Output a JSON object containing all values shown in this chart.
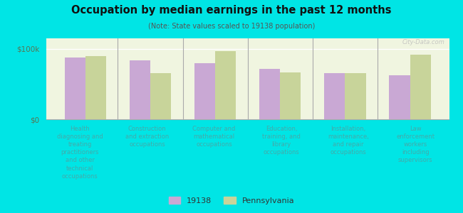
{
  "title": "Occupation by median earnings in the past 12 months",
  "subtitle": "(Note: State values scaled to 19138 population)",
  "background_outer": "#00e5e5",
  "background_inner_top": "#e8f0d8",
  "background_inner_bottom": "#f0f5e0",
  "bar_color_19138": "#c9a8d4",
  "bar_color_pa": "#c8d49a",
  "categories": [
    "Health\ndiagnosing and\ntreating\npractitioners\nand other\ntechnical\noccupations",
    "Construction\nand extraction\noccupations",
    "Computer and\nmathematical\noccupations",
    "Education,\ntraining, and\nlibrary\noccupations",
    "Installation,\nmaintenance,\nand repair\noccupations",
    "Law\nenforcement\nworkers\nincluding\nsupervisors"
  ],
  "values_19138": [
    88000,
    84000,
    80000,
    72000,
    66000,
    63000
  ],
  "values_pa": [
    90000,
    66000,
    97000,
    67000,
    66000,
    92000
  ],
  "ymax": 115000,
  "yticks": [
    0,
    100000
  ],
  "ytick_labels": [
    "$0",
    "$100k"
  ],
  "legend_19138": "19138",
  "legend_pa": "Pennsylvania",
  "watermark": "City-Data.com",
  "label_color": "#44aaaa",
  "ytick_color": "#557755"
}
